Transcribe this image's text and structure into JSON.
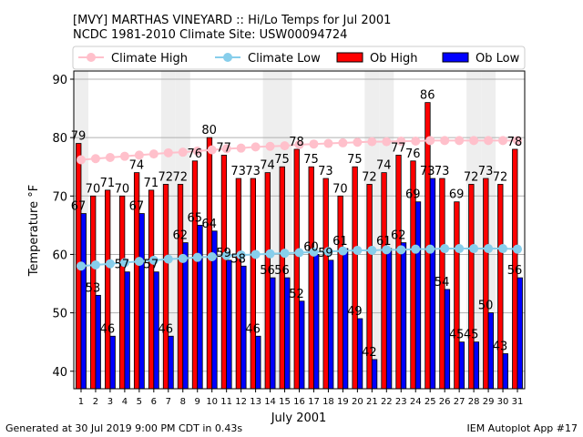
{
  "chart_data": {
    "type": "bar",
    "title_line1": "[MVY] MARTHAS VINEYARD :: Hi/Lo Temps for Jul 2001",
    "title_line2": "NCDC 1981-2010 Climate Site: USW00094724",
    "xlabel": "July 2001",
    "ylabel": "Temperature °F",
    "ylim": [
      37,
      91.4
    ],
    "yticks": [
      40,
      50,
      60,
      70,
      80,
      90
    ],
    "days": [
      1,
      2,
      3,
      4,
      5,
      6,
      7,
      8,
      9,
      10,
      11,
      12,
      13,
      14,
      15,
      16,
      17,
      18,
      19,
      20,
      21,
      22,
      23,
      24,
      25,
      26,
      27,
      28,
      29,
      30,
      31
    ],
    "weekend_days": [
      1,
      7,
      8,
      14,
      15,
      21,
      22,
      28,
      29
    ],
    "legend": [
      "Climate High",
      "Climate Low",
      "Ob High",
      "Ob Low"
    ],
    "legend_placement": "top",
    "series": [
      {
        "name": "Ob High",
        "color": "#ff0000",
        "values": [
          79,
          70,
          71,
          70,
          74,
          71,
          72,
          72,
          76,
          80,
          77,
          73,
          73,
          74,
          75,
          78,
          75,
          73,
          70,
          75,
          72,
          74,
          77,
          76,
          86,
          73,
          69,
          72,
          73,
          72,
          78
        ]
      },
      {
        "name": "Ob Low",
        "color": "#0000ff",
        "values": [
          67,
          53,
          46,
          57,
          67,
          57,
          46,
          62,
          65,
          64,
          59,
          58,
          46,
          56,
          56,
          52,
          60,
          59,
          61,
          49,
          42,
          61,
          62,
          69,
          73,
          54,
          45,
          45,
          50,
          43,
          56
        ]
      },
      {
        "name": "Climate High",
        "color": "#ffc0cb",
        "values": [
          76.2,
          76.4,
          76.6,
          76.8,
          77.0,
          77.2,
          77.4,
          77.5,
          77.7,
          77.9,
          78.1,
          78.2,
          78.4,
          78.5,
          78.6,
          78.8,
          78.9,
          79.0,
          79.1,
          79.2,
          79.3,
          79.3,
          79.4,
          79.4,
          79.5,
          79.5,
          79.5,
          79.5,
          79.5,
          79.5,
          79.5
        ]
      },
      {
        "name": "Climate Low",
        "color": "#87ceeb",
        "values": [
          58.0,
          58.2,
          58.4,
          58.6,
          58.8,
          59.0,
          59.2,
          59.3,
          59.5,
          59.6,
          59.8,
          59.9,
          60.0,
          60.1,
          60.2,
          60.3,
          60.4,
          60.5,
          60.6,
          60.7,
          60.7,
          60.8,
          60.8,
          60.9,
          60.9,
          61.0,
          61.0,
          61.0,
          61.0,
          61.0,
          60.9
        ]
      }
    ]
  },
  "footer": {
    "left": "Generated at 30 Jul 2019 9:00 PM CDT in 0.43s",
    "right": "IEM Autoplot App #17"
  }
}
